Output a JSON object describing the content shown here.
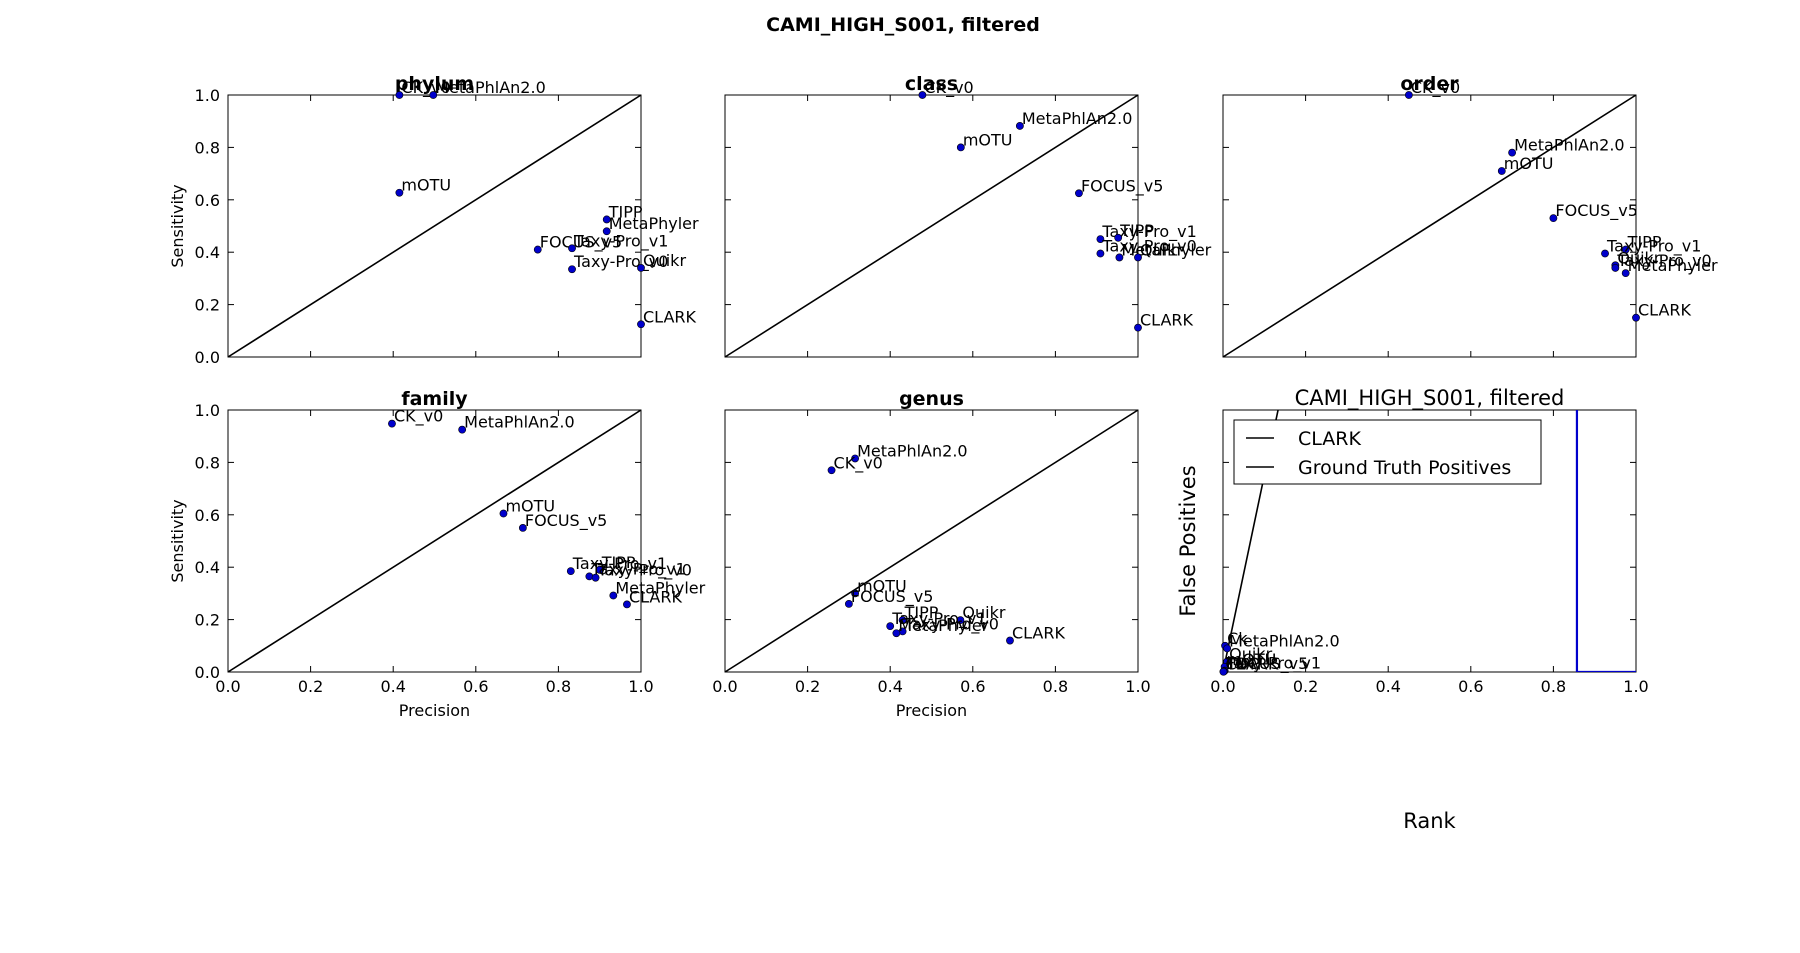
{
  "figure": {
    "title": "CAMI_HIGH_S001, filtered"
  },
  "chart_data": [
    {
      "type": "scatter",
      "title": "phylum",
      "xlabel": "",
      "ylabel": "Sensitivity",
      "xlim": [
        0,
        1
      ],
      "ylim": [
        0,
        1
      ],
      "diagonal": true,
      "marker_color": "#0000cc",
      "points": [
        {
          "label": "CK_v0",
          "x": 0.415,
          "y": 1.0
        },
        {
          "label": "MetaPhlAn2.0",
          "x": 0.497,
          "y": 1.0
        },
        {
          "label": "mOTU",
          "x": 0.415,
          "y": 0.627
        },
        {
          "label": "TIPP",
          "x": 0.917,
          "y": 0.525
        },
        {
          "label": "MetaPhyler",
          "x": 0.917,
          "y": 0.48
        },
        {
          "label": "FOCUS_v5",
          "x": 0.75,
          "y": 0.41
        },
        {
          "label": "Taxy-Pro_v1",
          "x": 0.833,
          "y": 0.415
        },
        {
          "label": "Taxy-Pro_v0",
          "x": 0.833,
          "y": 0.335
        },
        {
          "label": "Quikr",
          "x": 1.0,
          "y": 0.34
        },
        {
          "label": "CLARK",
          "x": 1.0,
          "y": 0.125
        }
      ]
    },
    {
      "type": "scatter",
      "title": "class",
      "xlabel": "",
      "ylabel": "",
      "xlim": [
        0,
        1
      ],
      "ylim": [
        0,
        1
      ],
      "diagonal": true,
      "marker_color": "#0000cc",
      "points": [
        {
          "label": "CK_v0",
          "x": 0.478,
          "y": 1.0
        },
        {
          "label": "MetaPhlAn2.0",
          "x": 0.714,
          "y": 0.882
        },
        {
          "label": "mOTU",
          "x": 0.571,
          "y": 0.8
        },
        {
          "label": "FOCUS_v5",
          "x": 0.857,
          "y": 0.625
        },
        {
          "label": "Taxy-Pro_v1",
          "x": 0.909,
          "y": 0.45
        },
        {
          "label": "TIPP",
          "x": 0.952,
          "y": 0.455
        },
        {
          "label": "Taxy-Pro_v0",
          "x": 0.909,
          "y": 0.395
        },
        {
          "label": "MetaPhyler",
          "x": 0.955,
          "y": 0.38
        },
        {
          "label": "Quikr",
          "x": 1.0,
          "y": 0.38
        },
        {
          "label": "CLARK",
          "x": 1.0,
          "y": 0.112
        }
      ]
    },
    {
      "type": "scatter",
      "title": "order",
      "xlabel": "",
      "ylabel": "",
      "xlim": [
        0,
        1
      ],
      "ylim": [
        0,
        1
      ],
      "diagonal": true,
      "marker_color": "#0000cc",
      "points": [
        {
          "label": "CK_v0",
          "x": 0.45,
          "y": 1.0
        },
        {
          "label": "MetaPhlAn2.0",
          "x": 0.7,
          "y": 0.78
        },
        {
          "label": "mOTU",
          "x": 0.675,
          "y": 0.71
        },
        {
          "label": "FOCUS_v5",
          "x": 0.8,
          "y": 0.53
        },
        {
          "label": "TIPP",
          "x": 0.975,
          "y": 0.41
        },
        {
          "label": "Taxy-Pro_v1",
          "x": 0.925,
          "y": 0.395
        },
        {
          "label": "Quikr",
          "x": 0.95,
          "y": 0.35
        },
        {
          "label": "Taxy-Pro_v0",
          "x": 0.95,
          "y": 0.34
        },
        {
          "label": "MetaPhyler",
          "x": 0.975,
          "y": 0.32
        },
        {
          "label": "CLARK",
          "x": 1.0,
          "y": 0.15
        }
      ]
    },
    {
      "type": "scatter",
      "title": "family",
      "xlabel": "Precision",
      "ylabel": "Sensitivity",
      "xlim": [
        0,
        1
      ],
      "ylim": [
        0,
        1
      ],
      "diagonal": true,
      "marker_color": "#0000cc",
      "points": [
        {
          "label": "CK_v0",
          "x": 0.397,
          "y": 0.948
        },
        {
          "label": "MetaPhlAn2.0",
          "x": 0.567,
          "y": 0.925
        },
        {
          "label": "mOTU",
          "x": 0.667,
          "y": 0.605
        },
        {
          "label": "FOCUS_v5",
          "x": 0.714,
          "y": 0.55
        },
        {
          "label": "Taxy-Pro_v1",
          "x": 0.83,
          "y": 0.385
        },
        {
          "label": "TIPP",
          "x": 0.9,
          "y": 0.39
        },
        {
          "label": "Taxy-Pro_v1",
          "x": 0.875,
          "y": 0.365
        },
        {
          "label": "Taxy-Pro_v0",
          "x": 0.89,
          "y": 0.36
        },
        {
          "label": "MetaPhyler",
          "x": 0.933,
          "y": 0.292
        },
        {
          "label": "CLARK",
          "x": 0.966,
          "y": 0.258
        }
      ]
    },
    {
      "type": "scatter",
      "title": "genus",
      "xlabel": "Precision",
      "ylabel": "",
      "xlim": [
        0,
        1
      ],
      "ylim": [
        0,
        1
      ],
      "diagonal": true,
      "marker_color": "#0000cc",
      "points": [
        {
          "label": "MetaPhlAn2.0",
          "x": 0.315,
          "y": 0.815
        },
        {
          "label": "CK_v0",
          "x": 0.258,
          "y": 0.77
        },
        {
          "label": "mOTU",
          "x": 0.315,
          "y": 0.3
        },
        {
          "label": "FOCUS_v5",
          "x": 0.3,
          "y": 0.26
        },
        {
          "label": "TIPP",
          "x": 0.43,
          "y": 0.198
        },
        {
          "label": "Quikr",
          "x": 0.57,
          "y": 0.198
        },
        {
          "label": "Taxy-Pro_v1",
          "x": 0.4,
          "y": 0.175
        },
        {
          "label": "Taxy-Pro_v0",
          "x": 0.43,
          "y": 0.155
        },
        {
          "label": "MetaPhyler",
          "x": 0.415,
          "y": 0.148
        },
        {
          "label": "CLARK",
          "x": 0.69,
          "y": 0.12
        }
      ]
    },
    {
      "type": "line",
      "title": "CAMI_HIGH_S001, filtered",
      "xlabel": "Rank",
      "ylabel": "False Positives",
      "xlim": [
        0,
        1
      ],
      "legend": {
        "placement": "top-left",
        "entries": [
          "CLARK",
          "Ground Truth Positives"
        ]
      },
      "series": [
        {
          "name": "CLARK",
          "color": "#000000",
          "x": [
            0.0,
            0.14
          ],
          "y": [
            0.0,
            1.05
          ]
        },
        {
          "name": "Ground Truth Positives",
          "color": "#0000cc",
          "x": [
            0.857,
            0.857,
            1.0
          ],
          "y": [
            1.05,
            0.0,
            0.0
          ]
        }
      ],
      "points": [
        {
          "label": "Ck",
          "x": 0.005,
          "y": 0.1
        },
        {
          "label": "MetaPhlAn2.0",
          "x": 0.01,
          "y": 0.09
        },
        {
          "label": "Quikr",
          "x": 0.01,
          "y": 0.04
        },
        {
          "label": "mOTU",
          "x": 0.004,
          "y": 0.02
        },
        {
          "label": "Taxy-Pro_v1",
          "x": 0.004,
          "y": 0.005
        },
        {
          "label": "FOCUS_v5",
          "x": 0.002,
          "y": 0.003
        },
        {
          "label": "TIPP",
          "x": 0.002,
          "y": 0.002
        },
        {
          "label": "CLARK",
          "x": 0.001,
          "y": 0.001
        }
      ]
    }
  ]
}
